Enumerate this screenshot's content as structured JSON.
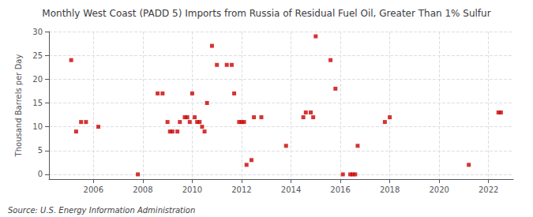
{
  "chart_data": {
    "type": "scatter",
    "title": "Monthly West Coast (PADD 5) Imports from Russia of Residual Fuel Oil, Greater Than 1% Sulfur",
    "ylabel": "Thousand Barrels per Day",
    "annotations": [
      "Source: U.S. Energy Information Administration"
    ],
    "x": [
      2005.1,
      2005.3,
      2005.5,
      2005.7,
      2006.2,
      2007.8,
      2008.6,
      2008.8,
      2009.0,
      2009.1,
      2009.2,
      2009.4,
      2009.5,
      2009.7,
      2009.8,
      2009.9,
      2010.0,
      2010.1,
      2010.2,
      2010.3,
      2010.4,
      2010.5,
      2010.6,
      2010.8,
      2011.0,
      2011.4,
      2011.6,
      2011.7,
      2011.9,
      2012.0,
      2012.1,
      2012.2,
      2012.4,
      2012.5,
      2012.8,
      2013.8,
      2014.5,
      2014.6,
      2014.8,
      2014.9,
      2015.0,
      2015.6,
      2015.8,
      2016.1,
      2016.4,
      2016.5,
      2016.6,
      2016.7,
      2017.8,
      2018.0,
      2021.2,
      2022.4,
      2022.5
    ],
    "values": [
      24,
      9,
      11,
      11,
      10,
      0,
      17,
      17,
      11,
      9,
      9,
      9,
      11,
      12,
      12,
      11,
      17,
      12,
      11,
      11,
      10,
      9,
      15,
      27,
      23,
      23,
      23,
      17,
      11,
      11,
      11,
      2,
      3,
      12,
      12,
      6,
      12,
      13,
      13,
      12,
      29,
      24,
      18,
      0,
      0,
      0,
      0,
      6,
      11,
      12,
      2,
      13,
      13
    ],
    "color": "#cc0000",
    "marker": "square",
    "xlim": [
      2004.2,
      2023.0
    ],
    "xticks": [
      2006,
      2008,
      2010,
      2012,
      2014,
      2016,
      2018,
      2020,
      2022
    ],
    "ylim": [
      -1,
      30
    ],
    "yticks": [
      0,
      5,
      10,
      15,
      20,
      25,
      30
    ],
    "grid": true
  }
}
